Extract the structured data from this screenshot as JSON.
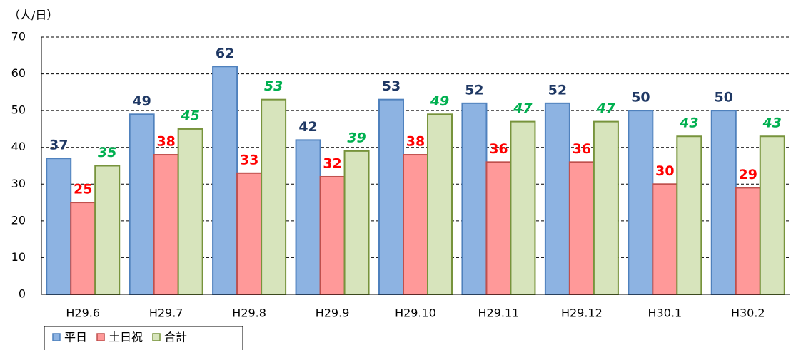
{
  "chart_data": {
    "type": "bar",
    "y_unit_label": "（人/日）",
    "categories": [
      "H29.6",
      "H29.7",
      "H29.8",
      "H29.9",
      "H29.10",
      "H29.11",
      "H29.12",
      "H30.1",
      "H30.2"
    ],
    "series": [
      {
        "name": "平日",
        "color": "#8db3e2",
        "edge_color": "#4f81bd",
        "label_color": "#1f3864",
        "label_italic": false,
        "values": [
          37,
          49,
          62,
          42,
          53,
          52,
          52,
          50,
          50
        ]
      },
      {
        "name": "土日祝",
        "color": "#ff9999",
        "edge_color": "#c0504d",
        "label_color": "#ff0000",
        "label_italic": false,
        "values": [
          25,
          38,
          33,
          32,
          38,
          36,
          36,
          30,
          29
        ]
      },
      {
        "name": "合計",
        "color": "#d7e4bc",
        "edge_color": "#77933c",
        "label_color": "#00b050",
        "label_italic": true,
        "values": [
          35,
          45,
          53,
          39,
          49,
          47,
          47,
          43,
          43
        ]
      }
    ],
    "ylim": [
      0,
      70
    ],
    "yticks": [
      0,
      10,
      20,
      30,
      40,
      50,
      60,
      70
    ],
    "grid": true,
    "legend": "bottom-left"
  }
}
